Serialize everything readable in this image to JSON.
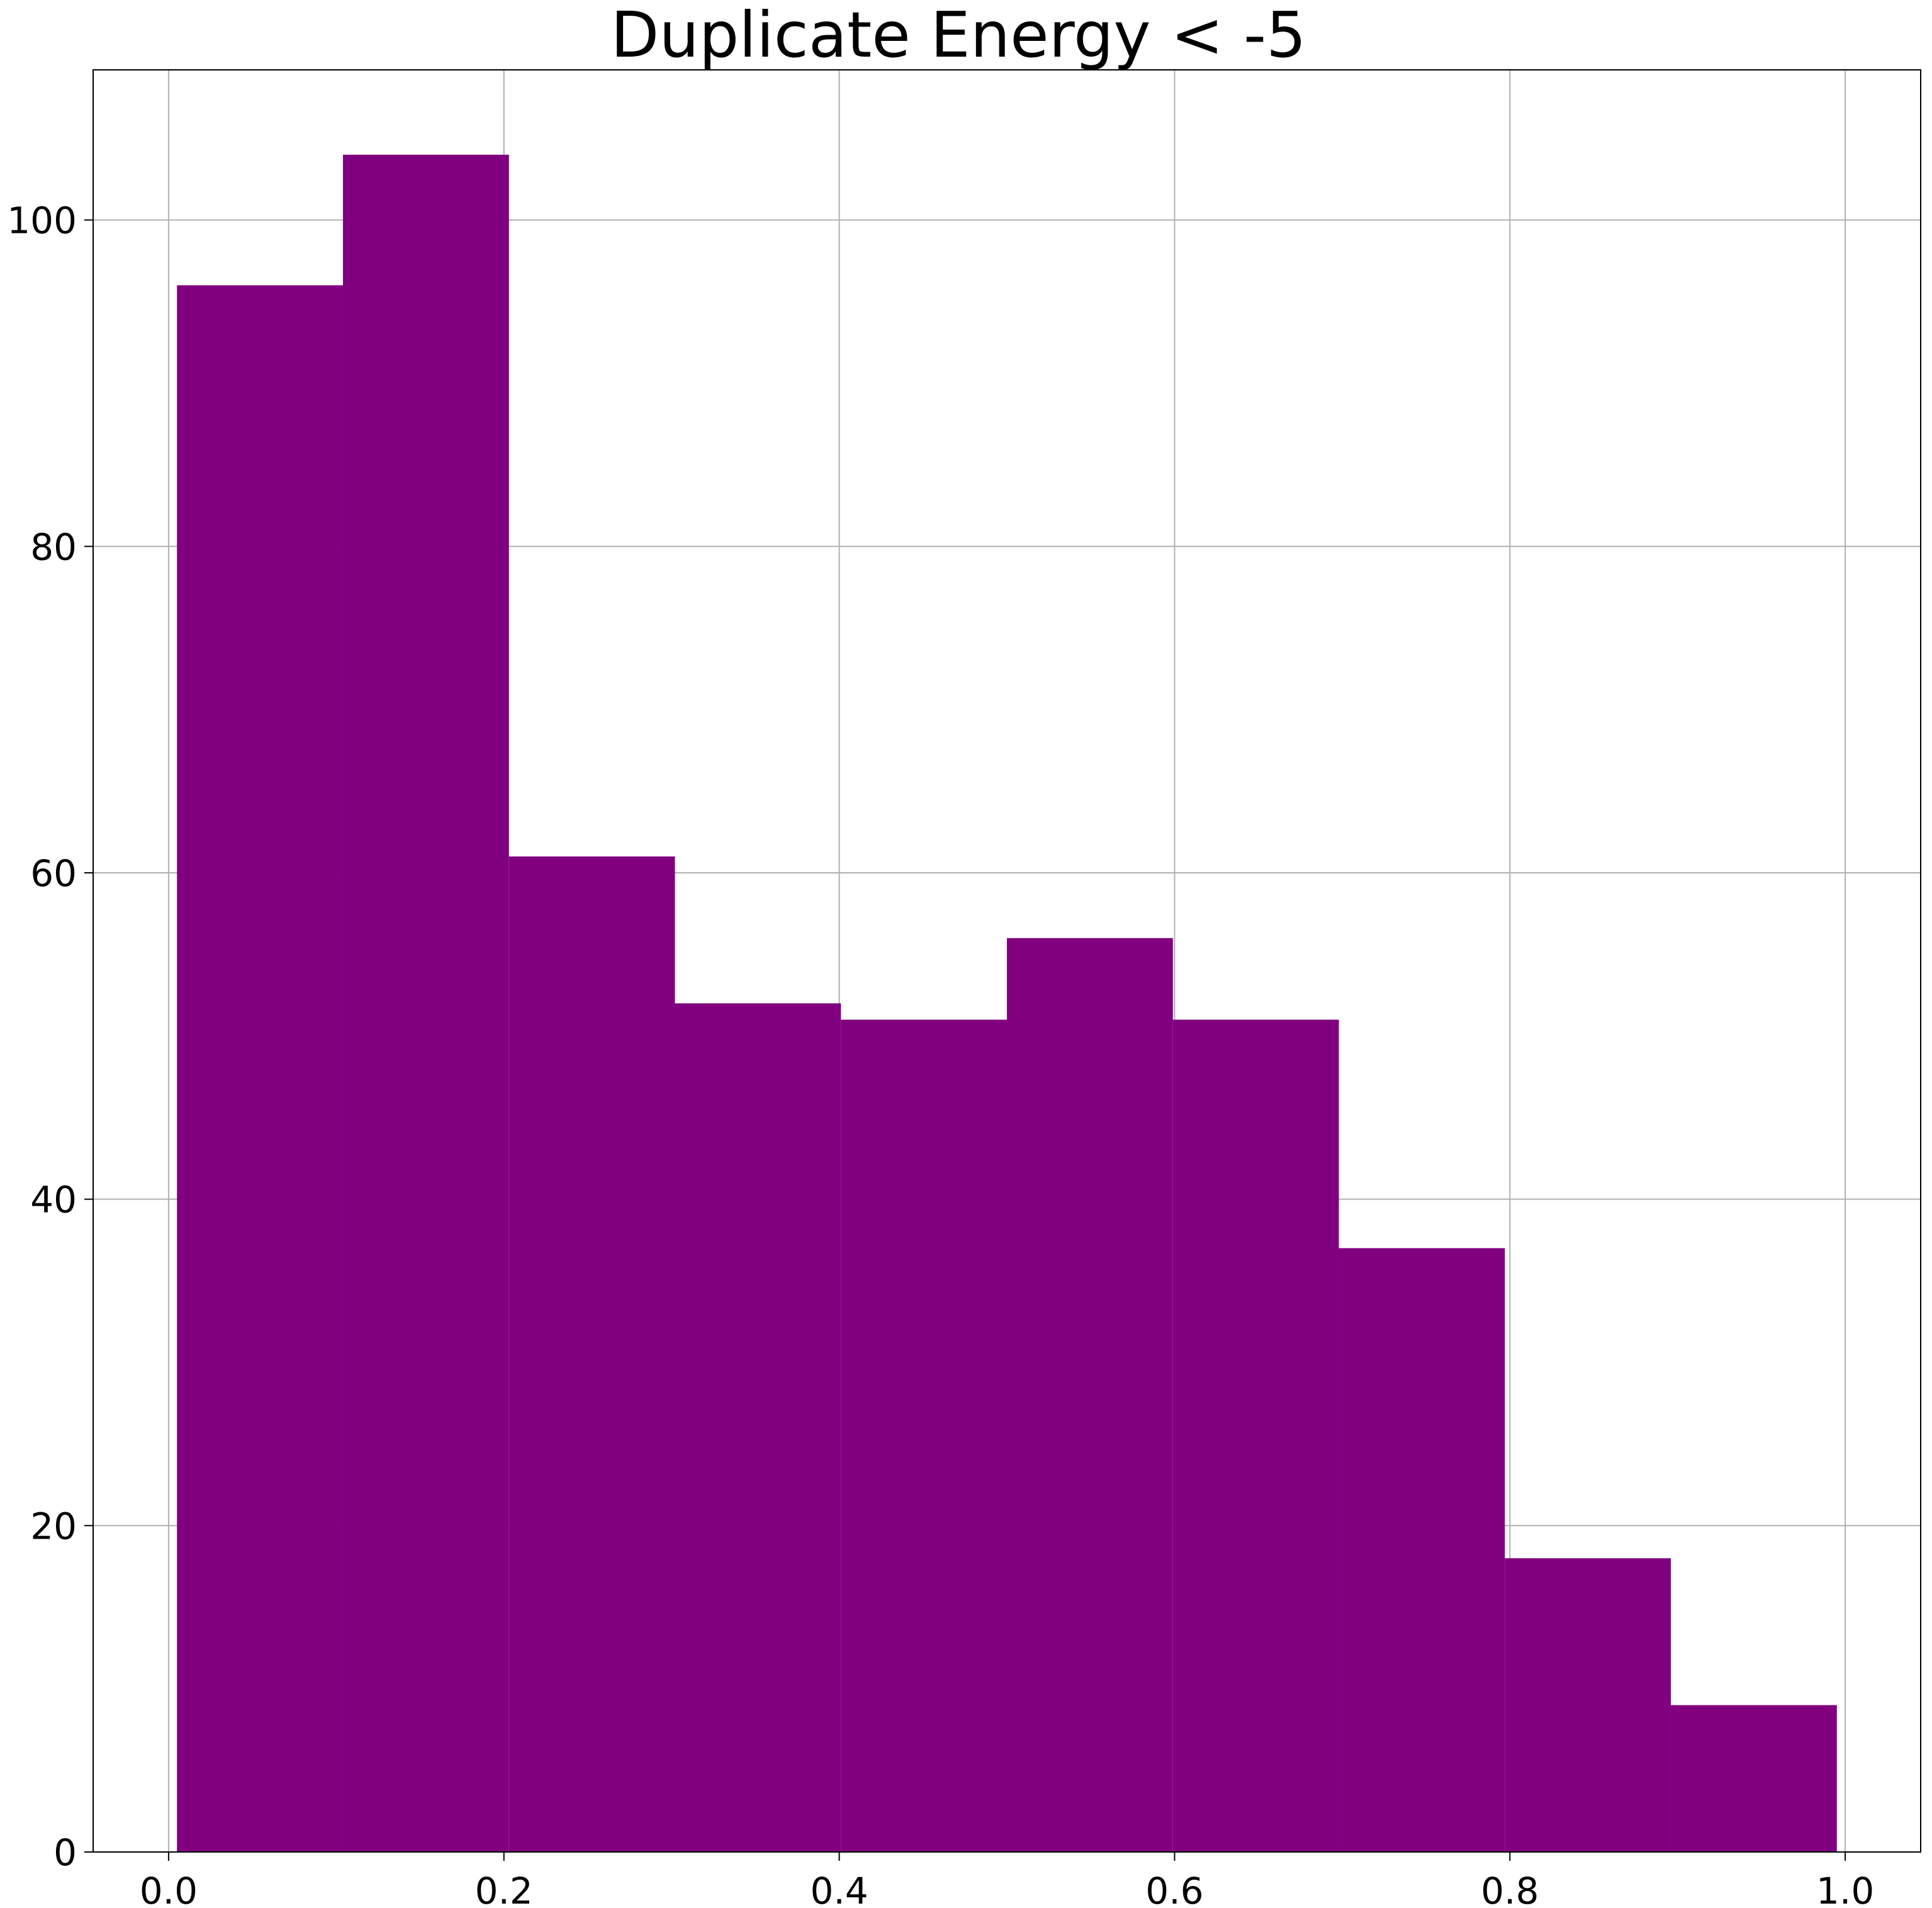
{
  "chart_data": {
    "type": "bar",
    "subtype": "histogram",
    "title": "Duplicate Energy < -5",
    "xlabel": "",
    "ylabel": "",
    "bins": [
      {
        "x0": 0.005,
        "x1": 0.104,
        "count": 96
      },
      {
        "x0": 0.104,
        "x1": 0.203,
        "count": 104
      },
      {
        "x0": 0.203,
        "x1": 0.302,
        "count": 61
      },
      {
        "x0": 0.302,
        "x1": 0.401,
        "count": 52
      },
      {
        "x0": 0.401,
        "x1": 0.5,
        "count": 51
      },
      {
        "x0": 0.5,
        "x1": 0.599,
        "count": 56
      },
      {
        "x0": 0.599,
        "x1": 0.698,
        "count": 51
      },
      {
        "x0": 0.698,
        "x1": 0.797,
        "count": 37
      },
      {
        "x0": 0.797,
        "x1": 0.896,
        "count": 18
      },
      {
        "x0": 0.896,
        "x1": 0.995,
        "count": 9
      }
    ],
    "xlim": [
      -0.045,
      1.045
    ],
    "ylim": [
      0,
      109.2
    ],
    "xticks": [
      0.0,
      0.2,
      0.4,
      0.6,
      0.8,
      1.0
    ],
    "xtick_labels": [
      "0.0",
      "0.2",
      "0.4",
      "0.6",
      "0.8",
      "1.0"
    ],
    "yticks": [
      0,
      20,
      40,
      60,
      80,
      100
    ],
    "ytick_labels": [
      "0",
      "20",
      "40",
      "60",
      "80",
      "100"
    ],
    "grid": true,
    "bar_color": "#800080",
    "grid_color": "#b0b0b0",
    "axes_color": "#000000"
  }
}
